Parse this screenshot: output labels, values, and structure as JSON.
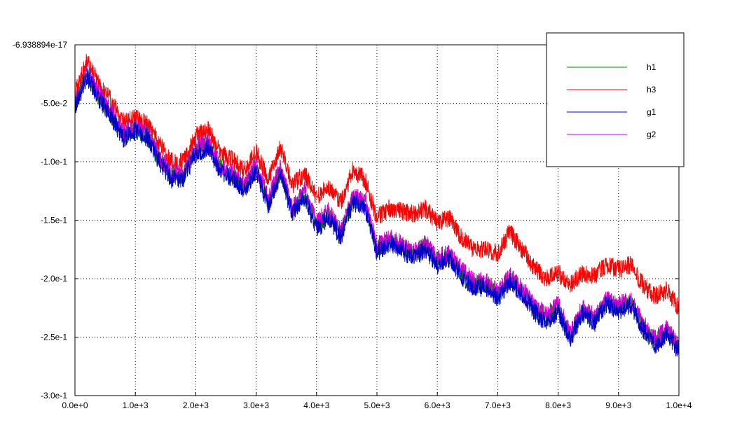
{
  "chart_data": {
    "type": "line",
    "title": "",
    "xlabel": "",
    "ylabel": "",
    "xlim": [
      0,
      10000
    ],
    "ylim": [
      -0.3,
      -6.938894e-17
    ],
    "grid": true,
    "legend_position": "top-right",
    "x_ticks": [
      {
        "value": 0,
        "label": "0.0e+0"
      },
      {
        "value": 1000,
        "label": "1.0e+3"
      },
      {
        "value": 2000,
        "label": "2.0e+3"
      },
      {
        "value": 3000,
        "label": "3.0e+3"
      },
      {
        "value": 4000,
        "label": "4.0e+3"
      },
      {
        "value": 5000,
        "label": "5.0e+3"
      },
      {
        "value": 6000,
        "label": "6.0e+3"
      },
      {
        "value": 7000,
        "label": "7.0e+3"
      },
      {
        "value": 8000,
        "label": "8.0e+3"
      },
      {
        "value": 9000,
        "label": "9.0e+3"
      },
      {
        "value": 10000,
        "label": "1.0e+4"
      }
    ],
    "y_ticks": [
      {
        "value": -6.938894e-17,
        "label": "-6.938894e-17"
      },
      {
        "value": -0.05,
        "label": "-5.0e-2"
      },
      {
        "value": -0.1,
        "label": "-1.0e-1"
      },
      {
        "value": -0.15,
        "label": "-1.5e-1"
      },
      {
        "value": -0.2,
        "label": "-2.0e-1"
      },
      {
        "value": -0.25,
        "label": "-2.5e-1"
      },
      {
        "value": -0.3,
        "label": "-3.0e-1"
      }
    ],
    "x": [
      0,
      200,
      400,
      600,
      800,
      1000,
      1200,
      1400,
      1600,
      1800,
      2000,
      2200,
      2400,
      2600,
      2800,
      3000,
      3200,
      3400,
      3600,
      3800,
      4000,
      4200,
      4400,
      4600,
      4800,
      5000,
      5200,
      5400,
      5600,
      5800,
      6000,
      6200,
      6400,
      6600,
      6800,
      7000,
      7200,
      7400,
      7600,
      7800,
      8000,
      8200,
      8400,
      8600,
      8800,
      9000,
      9200,
      9400,
      9600,
      9800,
      10000
    ],
    "series": [
      {
        "name": "h1",
        "color": "#008000",
        "values": [
          -0.052,
          -0.025,
          -0.045,
          -0.06,
          -0.078,
          -0.072,
          -0.078,
          -0.098,
          -0.113,
          -0.112,
          -0.09,
          -0.085,
          -0.105,
          -0.112,
          -0.122,
          -0.105,
          -0.135,
          -0.108,
          -0.142,
          -0.128,
          -0.155,
          -0.145,
          -0.162,
          -0.132,
          -0.135,
          -0.175,
          -0.168,
          -0.172,
          -0.18,
          -0.172,
          -0.185,
          -0.18,
          -0.195,
          -0.205,
          -0.205,
          -0.215,
          -0.2,
          -0.21,
          -0.225,
          -0.235,
          -0.225,
          -0.25,
          -0.228,
          -0.235,
          -0.22,
          -0.225,
          -0.22,
          -0.24,
          -0.255,
          -0.245,
          -0.26
        ]
      },
      {
        "name": "h3",
        "color": "#ff0000",
        "values": [
          -0.042,
          -0.012,
          -0.035,
          -0.048,
          -0.065,
          -0.062,
          -0.068,
          -0.085,
          -0.1,
          -0.1,
          -0.078,
          -0.072,
          -0.092,
          -0.098,
          -0.108,
          -0.092,
          -0.115,
          -0.088,
          -0.12,
          -0.11,
          -0.13,
          -0.122,
          -0.135,
          -0.108,
          -0.115,
          -0.148,
          -0.14,
          -0.142,
          -0.145,
          -0.14,
          -0.152,
          -0.148,
          -0.165,
          -0.175,
          -0.175,
          -0.178,
          -0.16,
          -0.175,
          -0.19,
          -0.2,
          -0.195,
          -0.205,
          -0.195,
          -0.198,
          -0.188,
          -0.192,
          -0.188,
          -0.205,
          -0.215,
          -0.21,
          -0.225
        ]
      },
      {
        "name": "g1",
        "color": "#0000cc",
        "values": [
          -0.053,
          -0.027,
          -0.047,
          -0.062,
          -0.08,
          -0.074,
          -0.08,
          -0.1,
          -0.115,
          -0.114,
          -0.093,
          -0.088,
          -0.107,
          -0.114,
          -0.124,
          -0.108,
          -0.138,
          -0.11,
          -0.145,
          -0.13,
          -0.158,
          -0.148,
          -0.165,
          -0.135,
          -0.138,
          -0.178,
          -0.17,
          -0.175,
          -0.183,
          -0.175,
          -0.188,
          -0.183,
          -0.198,
          -0.208,
          -0.207,
          -0.218,
          -0.202,
          -0.213,
          -0.228,
          -0.238,
          -0.228,
          -0.252,
          -0.23,
          -0.238,
          -0.222,
          -0.228,
          -0.222,
          -0.243,
          -0.258,
          -0.248,
          -0.262
        ]
      },
      {
        "name": "g2",
        "color": "#cc00cc",
        "values": [
          -0.05,
          -0.023,
          -0.043,
          -0.058,
          -0.076,
          -0.07,
          -0.076,
          -0.096,
          -0.111,
          -0.11,
          -0.088,
          -0.083,
          -0.103,
          -0.11,
          -0.12,
          -0.103,
          -0.132,
          -0.105,
          -0.14,
          -0.125,
          -0.152,
          -0.142,
          -0.16,
          -0.13,
          -0.132,
          -0.172,
          -0.165,
          -0.17,
          -0.178,
          -0.17,
          -0.182,
          -0.178,
          -0.192,
          -0.202,
          -0.202,
          -0.212,
          -0.198,
          -0.208,
          -0.222,
          -0.232,
          -0.222,
          -0.248,
          -0.225,
          -0.232,
          -0.218,
          -0.222,
          -0.218,
          -0.238,
          -0.252,
          -0.243,
          -0.258
        ]
      }
    ]
  }
}
